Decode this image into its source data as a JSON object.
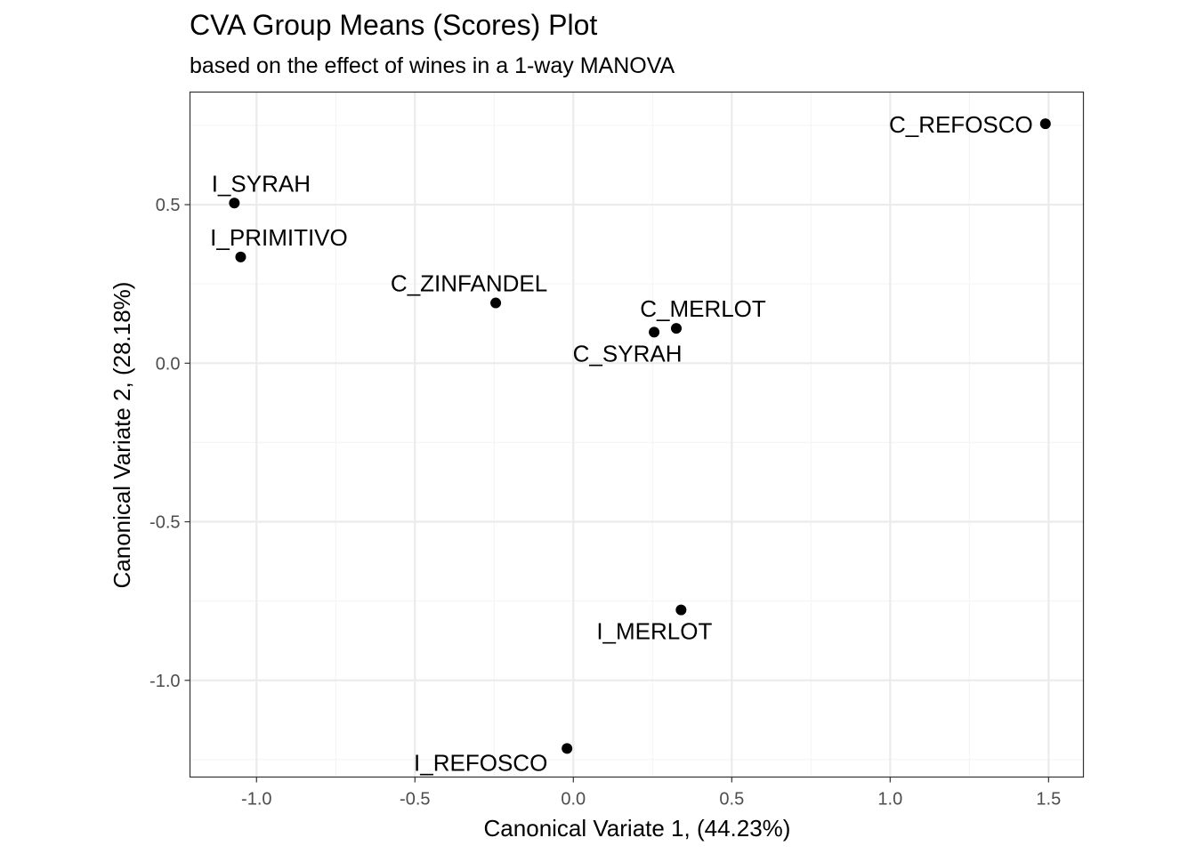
{
  "chart_data": {
    "type": "scatter",
    "title": "CVA Group Means (Scores) Plot",
    "subtitle": "based on the effect of wines in a 1-way MANOVA",
    "xlabel": "Canonical Variate 1, (44.23%)",
    "ylabel": "Canonical Variate 2, (28.18%)",
    "xlim": [
      -1.21,
      1.61
    ],
    "ylim": [
      -1.305,
      0.855
    ],
    "x_ticks": [
      -1.0,
      -0.5,
      0.0,
      0.5,
      1.0,
      1.5
    ],
    "x_tick_labels": [
      "-1.0",
      "-0.5",
      "0.0",
      "0.5",
      "1.0",
      "1.5"
    ],
    "y_ticks": [
      -1.0,
      -0.5,
      0.0,
      0.5
    ],
    "y_tick_labels": [
      "-1.0",
      "-0.5",
      "0.0",
      "0.5"
    ],
    "grid": true,
    "points": [
      {
        "label": "C_REFOSCO",
        "x": 1.49,
        "y": 0.755
      },
      {
        "label": "I_SYRAH",
        "x": -1.07,
        "y": 0.505
      },
      {
        "label": "I_PRIMITIVO",
        "x": -1.05,
        "y": 0.335
      },
      {
        "label": "C_ZINFANDEL",
        "x": -0.245,
        "y": 0.19
      },
      {
        "label": "C_MERLOT",
        "x": 0.325,
        "y": 0.11
      },
      {
        "label": "C_SYRAH",
        "x": 0.255,
        "y": 0.098
      },
      {
        "label": "I_MERLOT",
        "x": 0.34,
        "y": -0.778
      },
      {
        "label": "I_REFOSCO",
        "x": -0.02,
        "y": -1.215
      }
    ],
    "colors": {
      "point": "#000000",
      "grid_major": "#ebebeb",
      "grid_minor": "#f5f5f5",
      "panel_border": "#333333",
      "tick_text": "#4d4d4d"
    }
  }
}
